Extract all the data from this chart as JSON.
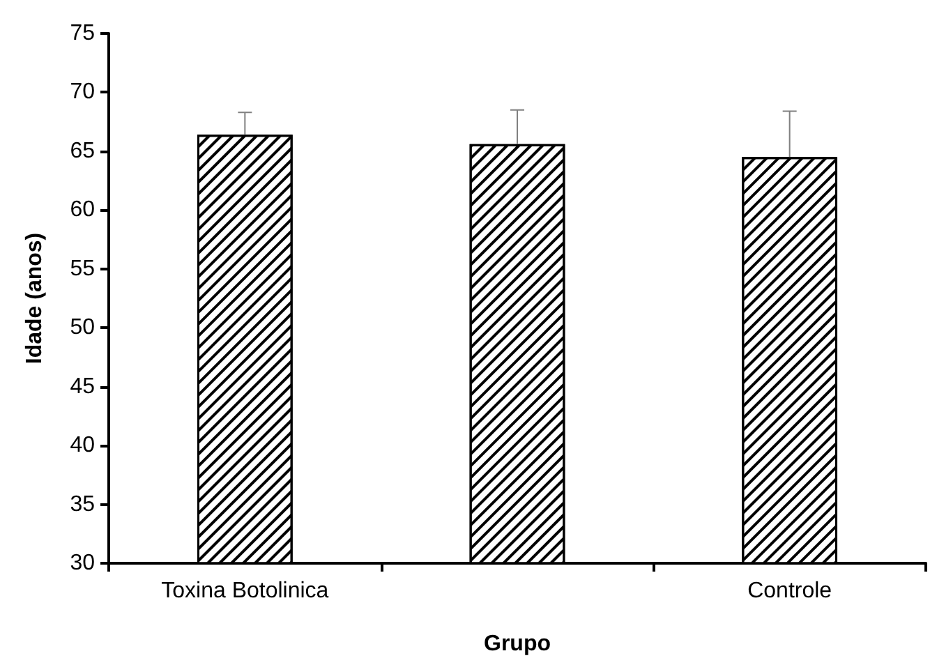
{
  "chart_data": {
    "type": "bar",
    "xlabel": "Grupo",
    "ylabel": "Idade (anos)",
    "categories": [
      "Toxina Botolinica",
      null,
      "Controle"
    ],
    "values": [
      66.4,
      65.6,
      64.5
    ],
    "errors": [
      [
        66.4,
        68.3
      ],
      [
        65.6,
        68.5
      ],
      [
        64.5,
        68.4
      ]
    ],
    "color": "#000000",
    "ylim": [
      30,
      75
    ],
    "yticks": [
      30,
      35,
      40,
      45,
      50,
      55,
      60,
      65,
      70,
      75
    ],
    "grid": false
  }
}
